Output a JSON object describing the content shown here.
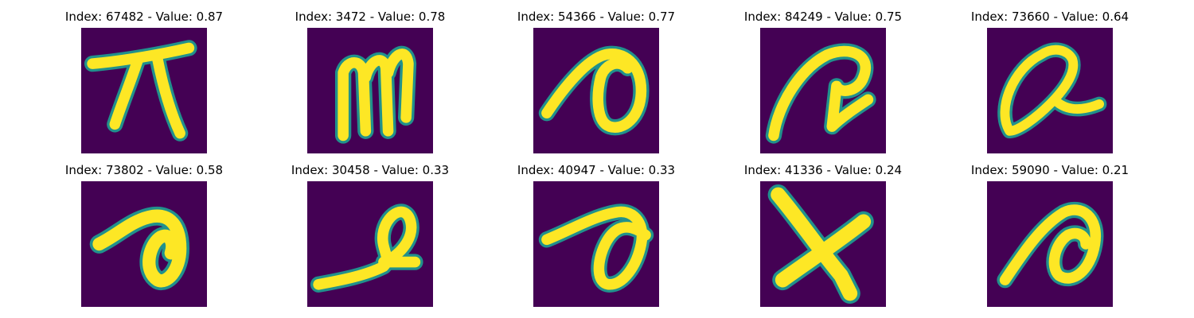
{
  "figure": {
    "colormap": {
      "background": "#440154",
      "edge": "#21918c",
      "mid": "#5ec962",
      "foreground": "#fde725"
    },
    "panels": [
      {
        "index": "67482",
        "value": "0.87",
        "title": "Index: 67482 - Value: 0.87",
        "glyph": "pi-like-icon"
      },
      {
        "index": "3472",
        "value": "0.78",
        "title": "Index: 3472 - Value: 0.78",
        "glyph": "m-like-icon"
      },
      {
        "index": "54366",
        "value": "0.77",
        "title": "Index: 54366 - Value: 0.77",
        "glyph": "a-loop-icon"
      },
      {
        "index": "84249",
        "value": "0.75",
        "title": "Index: 84249 - Value: 0.75",
        "glyph": "r-loop-icon"
      },
      {
        "index": "73660",
        "value": "0.64",
        "title": "Index: 73660 - Value: 0.64",
        "glyph": "alpha-loop-icon"
      },
      {
        "index": "73802",
        "value": "0.58",
        "title": "Index: 73802 - Value: 0.58",
        "glyph": "a-hook-icon"
      },
      {
        "index": "30458",
        "value": "0.33",
        "title": "Index: 30458 - Value: 0.33",
        "glyph": "l-loop-icon"
      },
      {
        "index": "40947",
        "value": "0.33",
        "title": "Index: 40947 - Value: 0.33",
        "glyph": "a-slant-icon"
      },
      {
        "index": "41336",
        "value": "0.24",
        "title": "Index: 41336 - Value: 0.24",
        "glyph": "x-cross-icon"
      },
      {
        "index": "59090",
        "value": "0.21",
        "title": "Index: 59090 - Value: 0.21",
        "glyph": "a-round-icon"
      }
    ]
  }
}
